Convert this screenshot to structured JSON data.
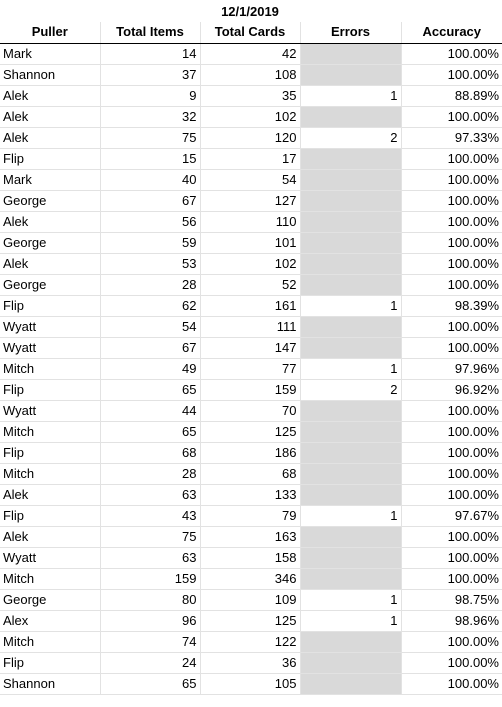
{
  "date": "12/1/2019",
  "headers": {
    "puller": "Puller",
    "total_items": "Total Items",
    "total_cards": "Total Cards",
    "errors": "Errors",
    "accuracy": "Accuracy"
  },
  "rows": [
    {
      "puller": "Mark",
      "items": "14",
      "cards": "42",
      "errors": "",
      "accuracy": "100.00%"
    },
    {
      "puller": "Shannon",
      "items": "37",
      "cards": "108",
      "errors": "",
      "accuracy": "100.00%"
    },
    {
      "puller": "Alek",
      "items": "9",
      "cards": "35",
      "errors": "1",
      "accuracy": "88.89%"
    },
    {
      "puller": "Alek",
      "items": "32",
      "cards": "102",
      "errors": "",
      "accuracy": "100.00%"
    },
    {
      "puller": "Alek",
      "items": "75",
      "cards": "120",
      "errors": "2",
      "accuracy": "97.33%"
    },
    {
      "puller": "Flip",
      "items": "15",
      "cards": "17",
      "errors": "",
      "accuracy": "100.00%"
    },
    {
      "puller": "Mark",
      "items": "40",
      "cards": "54",
      "errors": "",
      "accuracy": "100.00%"
    },
    {
      "puller": "George",
      "items": "67",
      "cards": "127",
      "errors": "",
      "accuracy": "100.00%"
    },
    {
      "puller": "Alek",
      "items": "56",
      "cards": "110",
      "errors": "",
      "accuracy": "100.00%"
    },
    {
      "puller": "George",
      "items": "59",
      "cards": "101",
      "errors": "",
      "accuracy": "100.00%"
    },
    {
      "puller": "Alek",
      "items": "53",
      "cards": "102",
      "errors": "",
      "accuracy": "100.00%"
    },
    {
      "puller": "George",
      "items": "28",
      "cards": "52",
      "errors": "",
      "accuracy": "100.00%"
    },
    {
      "puller": "Flip",
      "items": "62",
      "cards": "161",
      "errors": "1",
      "accuracy": "98.39%"
    },
    {
      "puller": "Wyatt",
      "items": "54",
      "cards": "111",
      "errors": "",
      "accuracy": "100.00%"
    },
    {
      "puller": "Wyatt",
      "items": "67",
      "cards": "147",
      "errors": "",
      "accuracy": "100.00%"
    },
    {
      "puller": "Mitch",
      "items": "49",
      "cards": "77",
      "errors": "1",
      "accuracy": "97.96%"
    },
    {
      "puller": "Flip",
      "items": "65",
      "cards": "159",
      "errors": "2",
      "accuracy": "96.92%"
    },
    {
      "puller": "Wyatt",
      "items": "44",
      "cards": "70",
      "errors": "",
      "accuracy": "100.00%"
    },
    {
      "puller": "Mitch",
      "items": "65",
      "cards": "125",
      "errors": "",
      "accuracy": "100.00%"
    },
    {
      "puller": "Flip",
      "items": "68",
      "cards": "186",
      "errors": "",
      "accuracy": "100.00%"
    },
    {
      "puller": "Mitch",
      "items": "28",
      "cards": "68",
      "errors": "",
      "accuracy": "100.00%"
    },
    {
      "puller": "Alek",
      "items": "63",
      "cards": "133",
      "errors": "",
      "accuracy": "100.00%"
    },
    {
      "puller": "Flip",
      "items": "43",
      "cards": "79",
      "errors": "1",
      "accuracy": "97.67%"
    },
    {
      "puller": "Alek",
      "items": "75",
      "cards": "163",
      "errors": "",
      "accuracy": "100.00%"
    },
    {
      "puller": "Wyatt",
      "items": "63",
      "cards": "158",
      "errors": "",
      "accuracy": "100.00%"
    },
    {
      "puller": "Mitch",
      "items": "159",
      "cards": "346",
      "errors": "",
      "accuracy": "100.00%"
    },
    {
      "puller": "George",
      "items": "80",
      "cards": "109",
      "errors": "1",
      "accuracy": "98.75%"
    },
    {
      "puller": "Alex",
      "items": "96",
      "cards": "125",
      "errors": "1",
      "accuracy": "98.96%"
    },
    {
      "puller": "Mitch",
      "items": "74",
      "cards": "122",
      "errors": "",
      "accuracy": "100.00%"
    },
    {
      "puller": "Flip",
      "items": "24",
      "cards": "36",
      "errors": "",
      "accuracy": "100.00%"
    },
    {
      "puller": "Shannon",
      "items": "65",
      "cards": "105",
      "errors": "",
      "accuracy": "100.00%"
    }
  ],
  "colors": {
    "empty_error_fill": "#d9d9d9",
    "gridline": "#e2e2e2"
  }
}
